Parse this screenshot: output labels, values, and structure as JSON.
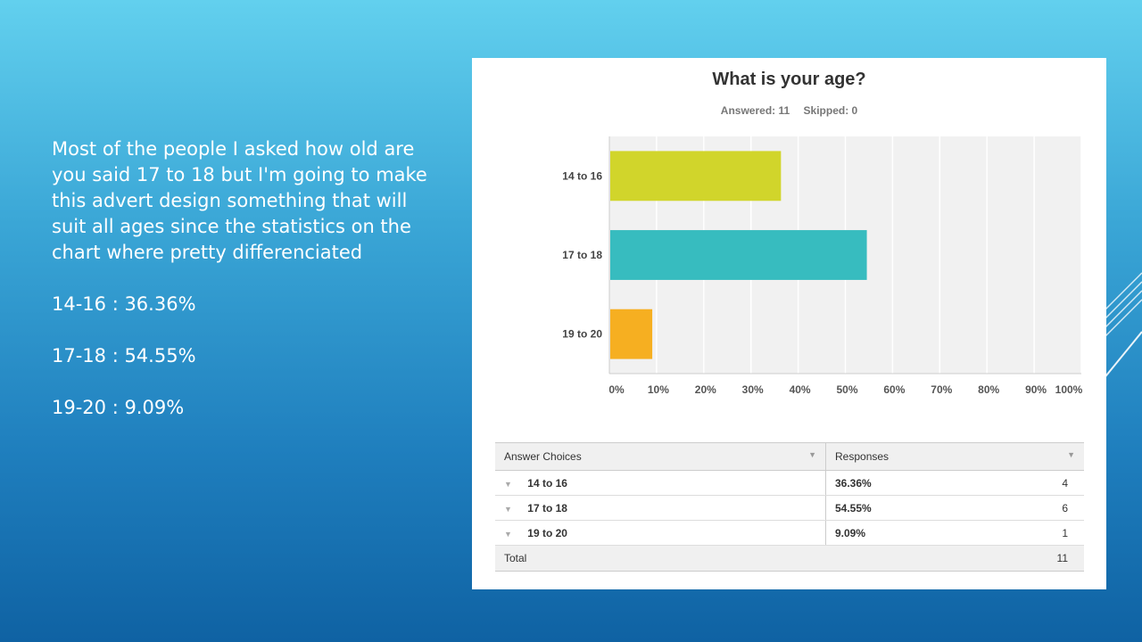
{
  "slide": {
    "paragraph": "Most of the people I asked how old are you said 17 to 18 but I'm going to make this advert design something that will suit all ages since the statistics on the chart where pretty differenciated",
    "stats": [
      "14-16 : 36.36%",
      "17-18 : 54.55%",
      "19-20 : 9.09%"
    ]
  },
  "survey": {
    "answered_label": "Answered: 11",
    "skipped_label": "Skipped: 0"
  },
  "chart_data": {
    "type": "bar",
    "orientation": "horizontal",
    "title": "What is your age?",
    "categories": [
      "14 to 16",
      "17 to 18",
      "19 to 20"
    ],
    "values": [
      36.36,
      54.55,
      9.09
    ],
    "colors": [
      "#d1d52b",
      "#37bcbf",
      "#f6af21"
    ],
    "xlim": [
      0,
      100
    ],
    "x_ticks": [
      "0%",
      "10%",
      "20%",
      "30%",
      "40%",
      "50%",
      "60%",
      "70%",
      "80%",
      "90%",
      "100%"
    ],
    "grid": true,
    "legend": "none"
  },
  "table": {
    "col_answer": "Answer Choices",
    "col_responses": "Responses",
    "rows": [
      {
        "choice": "14 to 16",
        "percent": "36.36%",
        "count": "4"
      },
      {
        "choice": "17 to 18",
        "percent": "54.55%",
        "count": "6"
      },
      {
        "choice": "19 to 20",
        "percent": "9.09%",
        "count": "1"
      }
    ],
    "total_label": "Total",
    "total_count": "11"
  },
  "colors": {
    "background_top": "#62d0ee",
    "background_bottom": "#0f62a3",
    "plot_background": "#f1f1f1"
  }
}
